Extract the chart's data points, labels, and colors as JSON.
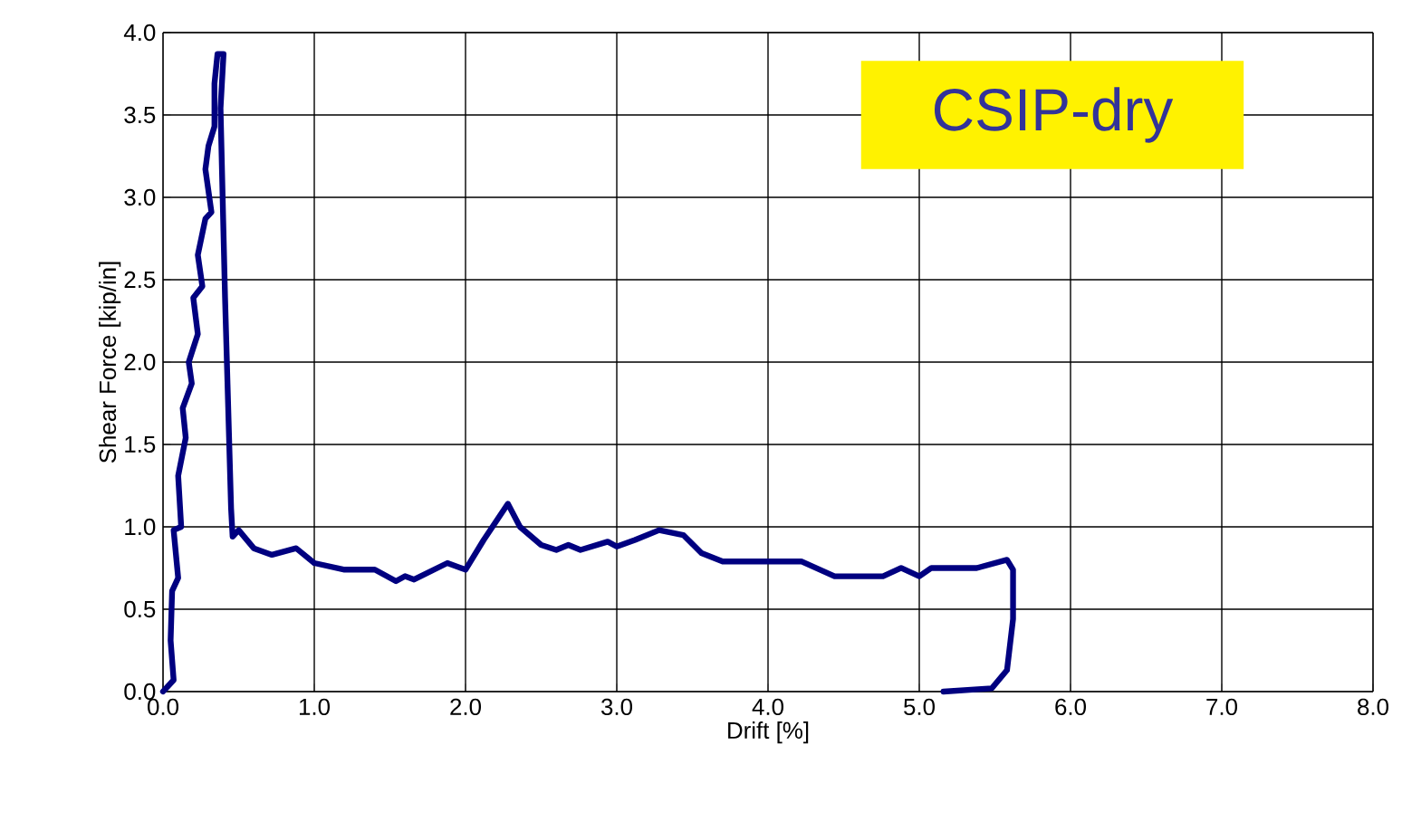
{
  "chart_data": {
    "type": "line",
    "xlabel": "Drift [%]",
    "ylabel": "Shear Force [kip/in]",
    "annotations": [
      "CSIP-dry"
    ],
    "xlim": [
      0,
      8
    ],
    "ylim": [
      0,
      4
    ],
    "xticks": [
      {
        "value": 0,
        "label": "0.0"
      },
      {
        "value": 1,
        "label": "1.0"
      },
      {
        "value": 2,
        "label": "2.0"
      },
      {
        "value": 3,
        "label": "3.0"
      },
      {
        "value": 4,
        "label": "4.0"
      },
      {
        "value": 5,
        "label": "5.0"
      },
      {
        "value": 6,
        "label": "6.0"
      },
      {
        "value": 7,
        "label": "7.0"
      },
      {
        "value": 8,
        "label": "8.0"
      }
    ],
    "yticks": [
      {
        "value": 0,
        "label": "0.0"
      },
      {
        "value": 0.5,
        "label": "0.5"
      },
      {
        "value": 1,
        "label": "1.0"
      },
      {
        "value": 1.5,
        "label": "1.5"
      },
      {
        "value": 2,
        "label": "2.0"
      },
      {
        "value": 2.5,
        "label": "2.5"
      },
      {
        "value": 3,
        "label": "3.0"
      },
      {
        "value": 3.5,
        "label": "3.5"
      },
      {
        "value": 4,
        "label": "4.0"
      }
    ],
    "grid": true,
    "marker": "none",
    "line_style": "solid",
    "series": [
      {
        "color": "#000080",
        "x": [
          0,
          0.07,
          0.05,
          0.06,
          0.1,
          0.07,
          0.12,
          0.1,
          0.15,
          0.13,
          0.19,
          0.17,
          0.23,
          0.2,
          0.26,
          0.23,
          0.28,
          0.32,
          0.28,
          0.3,
          0.34,
          0.34,
          0.36,
          0.4,
          0.38,
          0.41,
          0.45,
          0.46,
          0.5,
          0.6,
          0.72,
          0.88,
          1.0,
          1.2,
          1.4,
          1.54,
          1.6,
          1.66,
          1.88,
          2.0,
          2.12,
          2.28,
          2.36,
          2.5,
          2.6,
          2.68,
          2.76,
          2.94,
          3.0,
          3.12,
          3.28,
          3.44,
          3.56,
          3.7,
          4.0,
          4.22,
          4.44,
          4.76,
          4.88,
          5.0,
          5.08,
          5.38,
          5.58,
          5.62,
          5.62,
          5.58,
          5.48,
          5.16
        ],
        "values": [
          0,
          0.07,
          0.31,
          0.61,
          0.69,
          0.98,
          1.0,
          1.31,
          1.54,
          1.72,
          1.87,
          2.0,
          2.17,
          2.39,
          2.46,
          2.65,
          2.87,
          2.91,
          3.17,
          3.31,
          3.43,
          3.69,
          3.87,
          3.87,
          3.54,
          2.39,
          1.11,
          0.94,
          0.98,
          0.87,
          0.83,
          0.87,
          0.78,
          0.74,
          0.74,
          0.67,
          0.7,
          0.68,
          0.78,
          0.74,
          0.92,
          1.14,
          1.0,
          0.89,
          0.86,
          0.89,
          0.86,
          0.91,
          0.88,
          0.92,
          0.98,
          0.95,
          0.84,
          0.79,
          0.79,
          0.79,
          0.7,
          0.7,
          0.75,
          0.7,
          0.75,
          0.75,
          0.8,
          0.74,
          0.44,
          0.13,
          0.02,
          0.0
        ]
      }
    ]
  }
}
